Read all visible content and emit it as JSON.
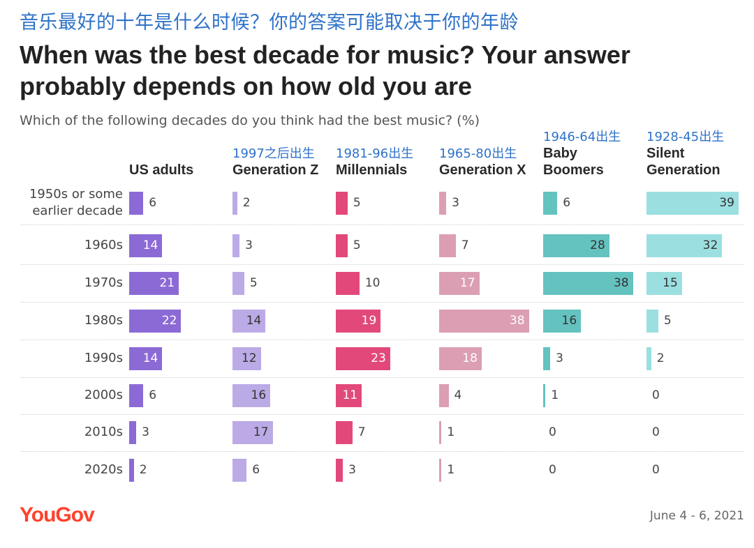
{
  "header": {
    "cn_title": "音乐最好的十年是什么时候？你的答案可能取决于你的年龄",
    "en_title": "When was the best decade for music? Your answer probably depends on how old you are",
    "subtitle": "Which of the following decades do you think had the best music? (%)"
  },
  "footer": {
    "logo": "YouGov",
    "date": "June 4 - 6, 2021"
  },
  "colors": {
    "us_adults": "#8c6ad6",
    "gen_z": "#bcaae6",
    "millennials": "#e2497a",
    "gen_x": "#dc9eb3",
    "boomers": "#64c2bf",
    "silent": "#9bdfe1"
  },
  "chart_data": {
    "type": "bar",
    "title": "When was the best decade for music? Your answer probably depends on how old you are",
    "question": "Which of the following decades do you think had the best music? (%)",
    "unit": "%",
    "categories": [
      "1950s or some earlier decade",
      "1960s",
      "1970s",
      "1980s",
      "1990s",
      "2000s",
      "2010s",
      "2020s"
    ],
    "series": [
      {
        "key": "us_adults",
        "name": "US adults",
        "note": "",
        "values": [
          6,
          14,
          21,
          22,
          14,
          6,
          3,
          2
        ]
      },
      {
        "key": "gen_z",
        "name": "Generation Z",
        "note": "1997之后出生",
        "values": [
          2,
          3,
          5,
          14,
          12,
          16,
          17,
          6
        ]
      },
      {
        "key": "millennials",
        "name": "Millennials",
        "note": "1981-96出生",
        "values": [
          5,
          5,
          10,
          19,
          23,
          11,
          7,
          3
        ]
      },
      {
        "key": "gen_x",
        "name": "Generation X",
        "note": "1965-80出生",
        "values": [
          3,
          7,
          17,
          38,
          18,
          4,
          1,
          1
        ]
      },
      {
        "key": "boomers",
        "name": "Baby\nBoomers",
        "note": "1946-64出生",
        "values": [
          6,
          28,
          38,
          16,
          3,
          1,
          0,
          0
        ]
      },
      {
        "key": "silent",
        "name": "Silent\nGeneration",
        "note": "1928-45出生",
        "values": [
          39,
          32,
          15,
          5,
          2,
          0,
          0,
          0
        ]
      }
    ]
  }
}
